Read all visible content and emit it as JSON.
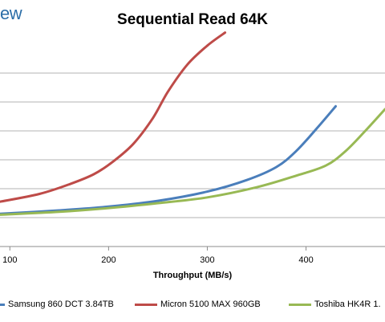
{
  "brand_text": "ew",
  "chart_data": {
    "type": "line",
    "title": "Sequential Read 64K",
    "xlabel": "Throughput (MB/s)",
    "ylabel": "",
    "xlim": [
      90,
      480
    ],
    "ylim": [
      0,
      7
    ],
    "xticks": [
      100,
      200,
      300,
      400
    ],
    "ygrid": [
      1,
      2,
      3,
      4,
      5,
      6
    ],
    "grid": true,
    "legend_position": "bottom",
    "series": [
      {
        "name": "Samsung 860 DCT 3.84TB",
        "color": "#4a7ebb",
        "points": [
          [
            90,
            1.13
          ],
          [
            150,
            1.25
          ],
          [
            200,
            1.38
          ],
          [
            250,
            1.58
          ],
          [
            300,
            1.9
          ],
          [
            340,
            2.3
          ],
          [
            370,
            2.75
          ],
          [
            390,
            3.3
          ],
          [
            410,
            4.05
          ],
          [
            430,
            4.85
          ]
        ]
      },
      {
        "name": "Micron 5100 MAX 960GB",
        "color": "#be4b48",
        "points": [
          [
            90,
            1.55
          ],
          [
            130,
            1.82
          ],
          [
            160,
            2.15
          ],
          [
            185,
            2.5
          ],
          [
            205,
            2.95
          ],
          [
            225,
            3.55
          ],
          [
            245,
            4.45
          ],
          [
            260,
            5.35
          ],
          [
            280,
            6.3
          ],
          [
            300,
            6.95
          ],
          [
            318,
            7.4
          ]
        ]
      },
      {
        "name": "Toshiba HK4R 1.",
        "color": "#98b954",
        "points": [
          [
            90,
            1.1
          ],
          [
            150,
            1.2
          ],
          [
            200,
            1.33
          ],
          [
            250,
            1.5
          ],
          [
            300,
            1.7
          ],
          [
            350,
            2.05
          ],
          [
            390,
            2.45
          ],
          [
            420,
            2.8
          ],
          [
            440,
            3.3
          ],
          [
            460,
            4.0
          ],
          [
            480,
            4.75
          ]
        ]
      }
    ]
  }
}
